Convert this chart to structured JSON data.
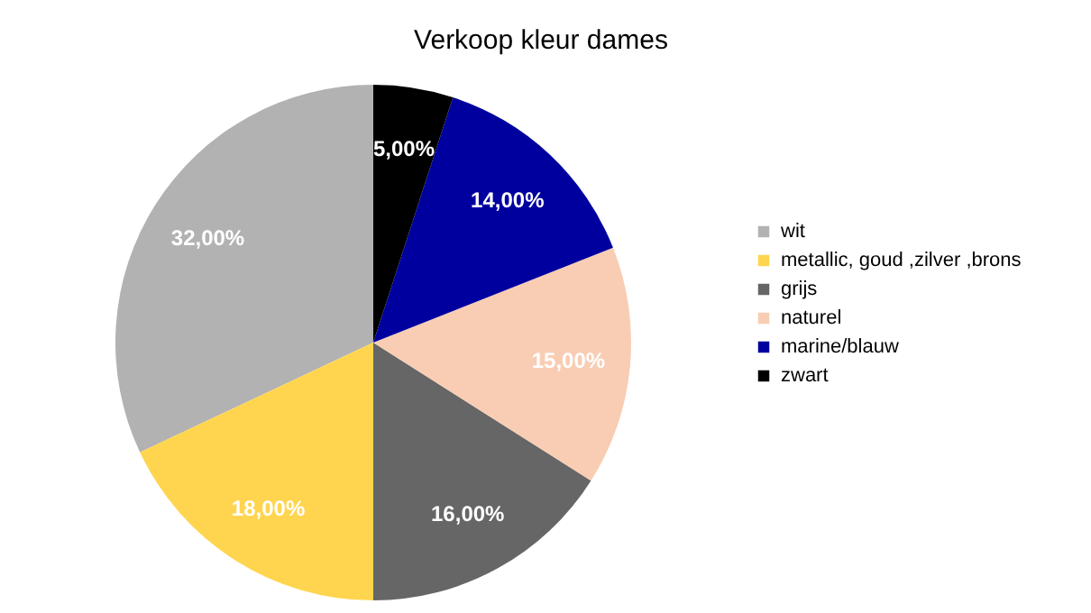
{
  "chart_data": {
    "type": "pie",
    "title": "Verkoop kleur dames",
    "categories": [
      "wit",
      "metallic, goud ,zilver ,brons",
      "grijs",
      "naturel",
      "marine/blauw",
      "zwart"
    ],
    "values": [
      32,
      18,
      16,
      15,
      14,
      5
    ],
    "value_labels": [
      "32,00%",
      "18,00%",
      "16,00%",
      "15,00%",
      "14,00%",
      "5,00%"
    ],
    "colors": [
      "#b2b2b2",
      "#ffd54f",
      "#666666",
      "#f8cdb4",
      "#00009f",
      "#000000"
    ],
    "legend": "right"
  }
}
